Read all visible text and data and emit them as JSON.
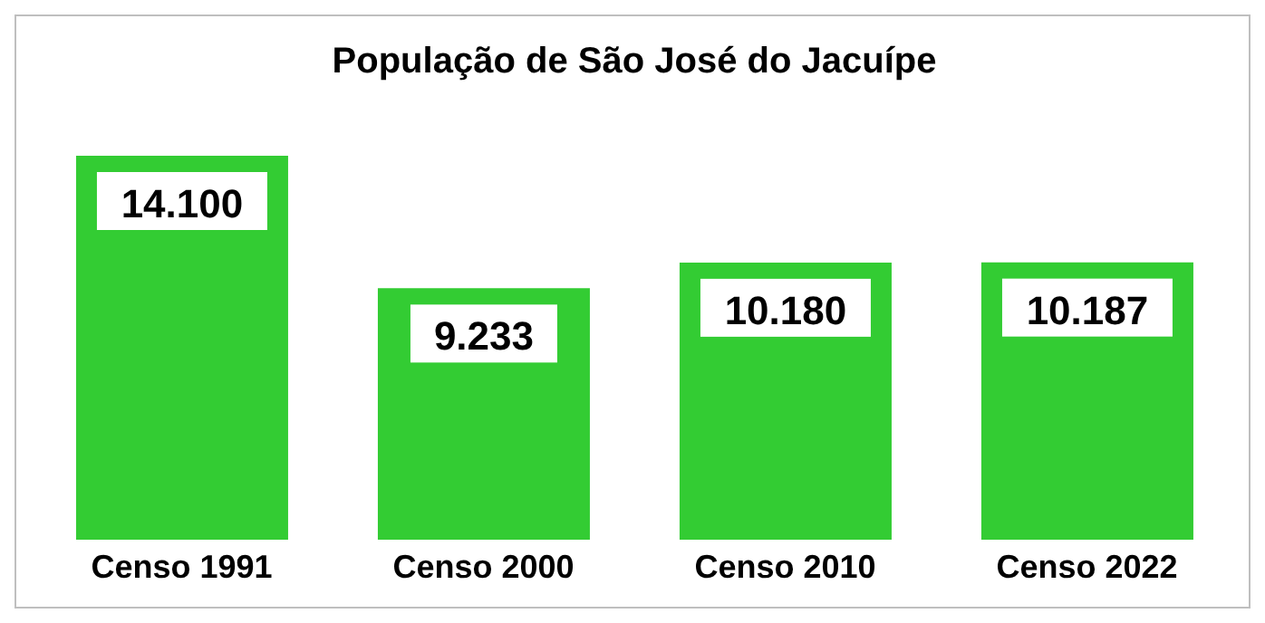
{
  "chart_data": {
    "type": "bar",
    "title": "População de São José do Jacuípe",
    "categories": [
      "Censo 1991",
      "Censo 2000",
      "Censo 2010",
      "Censo 2022"
    ],
    "values": [
      14100,
      9233,
      10180,
      10187
    ],
    "value_labels": [
      "14.100",
      "9.233",
      "10.180",
      "10.187"
    ],
    "color": "#33cc33"
  }
}
